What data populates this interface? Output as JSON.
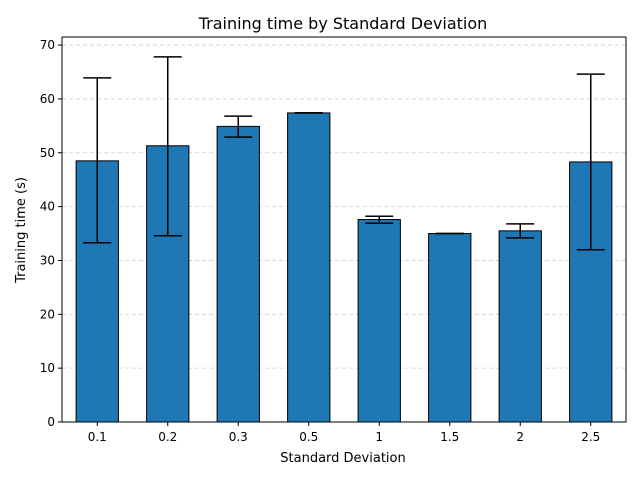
{
  "chart_data": {
    "type": "bar",
    "title": "Training time by Standard Deviation",
    "xlabel": "Standard Deviation",
    "ylabel": "Training time (s)",
    "categories": [
      "0.1",
      "0.2",
      "0.3",
      "0.5",
      "1",
      "1.5",
      "2",
      "2.5"
    ],
    "values": [
      48.5,
      51.3,
      54.9,
      57.4,
      37.6,
      35.0,
      35.5,
      48.3
    ],
    "error_low": [
      33.3,
      34.6,
      52.9,
      57.4,
      36.9,
      35.0,
      34.2,
      32.0
    ],
    "error_high": [
      63.9,
      67.8,
      56.8,
      57.4,
      38.2,
      35.0,
      36.8,
      64.6
    ],
    "ylim": [
      0,
      71.5
    ],
    "yticks": [
      0,
      10,
      20,
      30,
      40,
      50,
      60,
      70
    ],
    "grid": true,
    "bar_color": "#1f77b4",
    "edge_color": "#000000"
  }
}
